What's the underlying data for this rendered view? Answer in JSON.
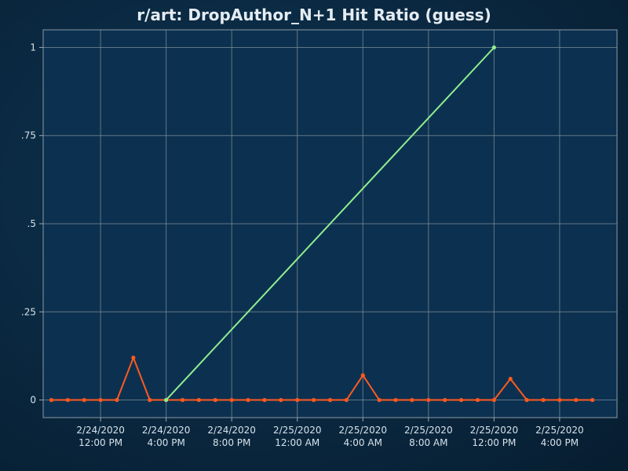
{
  "chart_data": {
    "type": "line",
    "title": "r/art: DropAuthor_N+1 Hit Ratio (guess)",
    "xlabel": "",
    "ylabel": "",
    "ylim": [
      -0.05,
      1.05
    ],
    "xlim": [
      "2020-02-24 08:30",
      "2020-02-25 19:30"
    ],
    "grid": true,
    "yticks": [
      {
        "value": 0,
        "label": "0"
      },
      {
        "value": 0.25,
        "label": ".25"
      },
      {
        "value": 0.5,
        "label": ".5"
      },
      {
        "value": 0.75,
        "label": ".75"
      },
      {
        "value": 1,
        "label": "1"
      }
    ],
    "xticks": [
      {
        "value": "2020-02-24 12:00",
        "date": "2/24/2020",
        "time": "12:00 PM"
      },
      {
        "value": "2020-02-24 16:00",
        "date": "2/24/2020",
        "time": "4:00 PM"
      },
      {
        "value": "2020-02-24 20:00",
        "date": "2/24/2020",
        "time": "8:00 PM"
      },
      {
        "value": "2020-02-25 00:00",
        "date": "2/25/2020",
        "time": "12:00 AM"
      },
      {
        "value": "2020-02-25 04:00",
        "date": "2/25/2020",
        "time": "4:00 AM"
      },
      {
        "value": "2020-02-25 08:00",
        "date": "2/25/2020",
        "time": "8:00 AM"
      },
      {
        "value": "2020-02-25 12:00",
        "date": "2/25/2020",
        "time": "12:00 PM"
      },
      {
        "value": "2020-02-25 16:00",
        "date": "2/25/2020",
        "time": "4:00 PM"
      }
    ],
    "series": [
      {
        "color": "#ff5a1f",
        "points": [
          {
            "x": "2020-02-24 09:00",
            "y": 0
          },
          {
            "x": "2020-02-24 10:00",
            "y": 0
          },
          {
            "x": "2020-02-24 11:00",
            "y": 0
          },
          {
            "x": "2020-02-24 12:00",
            "y": 0
          },
          {
            "x": "2020-02-24 13:00",
            "y": 0
          },
          {
            "x": "2020-02-24 14:00",
            "y": 0.12
          },
          {
            "x": "2020-02-24 15:00",
            "y": 0
          },
          {
            "x": "2020-02-24 16:00",
            "y": 0
          },
          {
            "x": "2020-02-24 17:00",
            "y": 0
          },
          {
            "x": "2020-02-24 18:00",
            "y": 0
          },
          {
            "x": "2020-02-24 19:00",
            "y": 0
          },
          {
            "x": "2020-02-24 20:00",
            "y": 0
          },
          {
            "x": "2020-02-24 21:00",
            "y": 0
          },
          {
            "x": "2020-02-24 22:00",
            "y": 0
          },
          {
            "x": "2020-02-24 23:00",
            "y": 0
          },
          {
            "x": "2020-02-25 00:00",
            "y": 0
          },
          {
            "x": "2020-02-25 01:00",
            "y": 0
          },
          {
            "x": "2020-02-25 02:00",
            "y": 0
          },
          {
            "x": "2020-02-25 03:00",
            "y": 0
          },
          {
            "x": "2020-02-25 04:00",
            "y": 0.07
          },
          {
            "x": "2020-02-25 05:00",
            "y": 0
          },
          {
            "x": "2020-02-25 06:00",
            "y": 0
          },
          {
            "x": "2020-02-25 07:00",
            "y": 0
          },
          {
            "x": "2020-02-25 08:00",
            "y": 0
          },
          {
            "x": "2020-02-25 09:00",
            "y": 0
          },
          {
            "x": "2020-02-25 10:00",
            "y": 0
          },
          {
            "x": "2020-02-25 11:00",
            "y": 0
          },
          {
            "x": "2020-02-25 12:00",
            "y": 0
          },
          {
            "x": "2020-02-25 13:00",
            "y": 0.06
          },
          {
            "x": "2020-02-25 14:00",
            "y": 0
          },
          {
            "x": "2020-02-25 15:00",
            "y": 0
          },
          {
            "x": "2020-02-25 16:00",
            "y": 0
          },
          {
            "x": "2020-02-25 17:00",
            "y": 0
          },
          {
            "x": "2020-02-25 18:00",
            "y": 0
          }
        ]
      },
      {
        "color": "#90ee90",
        "points": [
          {
            "x": "2020-02-24 16:00",
            "y": 0
          },
          {
            "x": "2020-02-25 12:00",
            "y": 1
          }
        ]
      }
    ]
  }
}
